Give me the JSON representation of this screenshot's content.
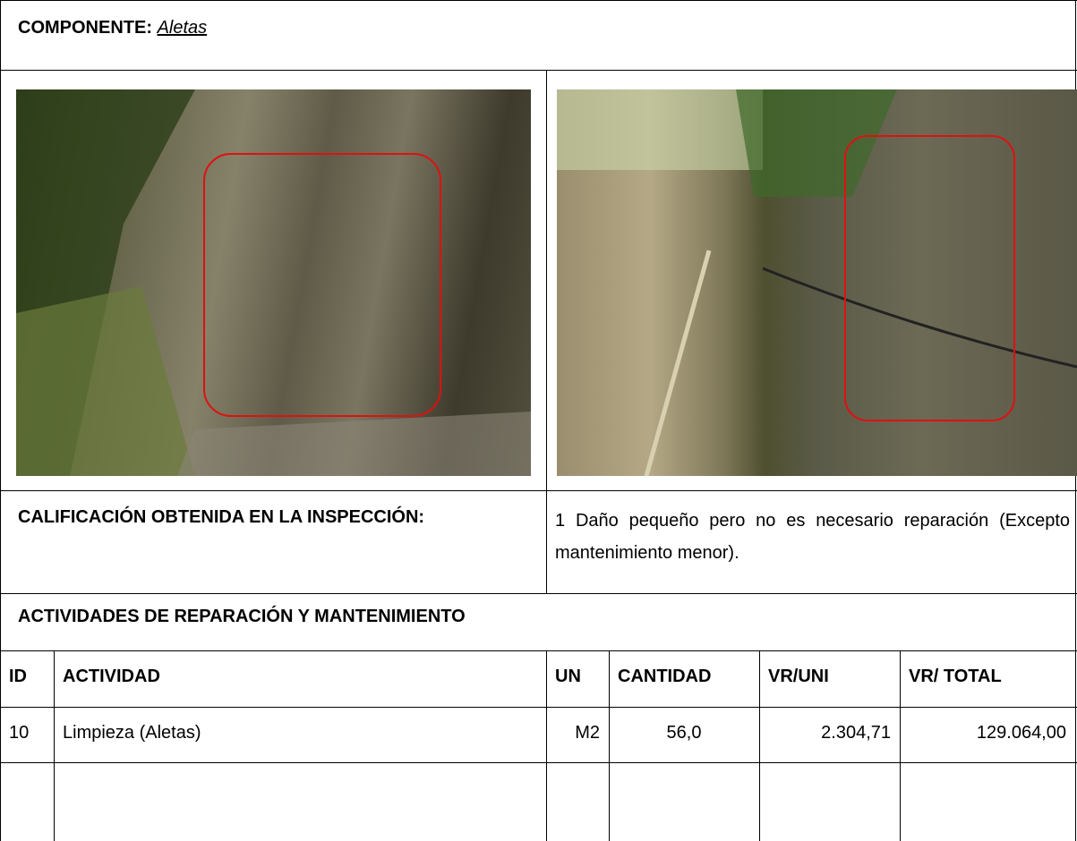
{
  "header": {
    "label": "COMPONENTE:",
    "value": "Aletas"
  },
  "rating": {
    "label": "CALIFICACIÓN OBTENIDA EN LA INSPECCIÓN:",
    "text": "1 Daño pequeño pero no es necesario reparación (Excepto mantenimiento menor)."
  },
  "activities": {
    "title": "ACTIVIDADES DE REPARACIÓN Y MANTENIMIENTO",
    "columns": [
      "ID",
      "ACTIVIDAD",
      "UN",
      "CANTIDAD",
      "VR/UNI",
      "VR/ TOTAL"
    ],
    "rows": [
      [
        "10",
        "Limpieza (Aletas)",
        "M2",
        "56,0",
        "2.304,71",
        "129.064,00"
      ]
    ]
  }
}
